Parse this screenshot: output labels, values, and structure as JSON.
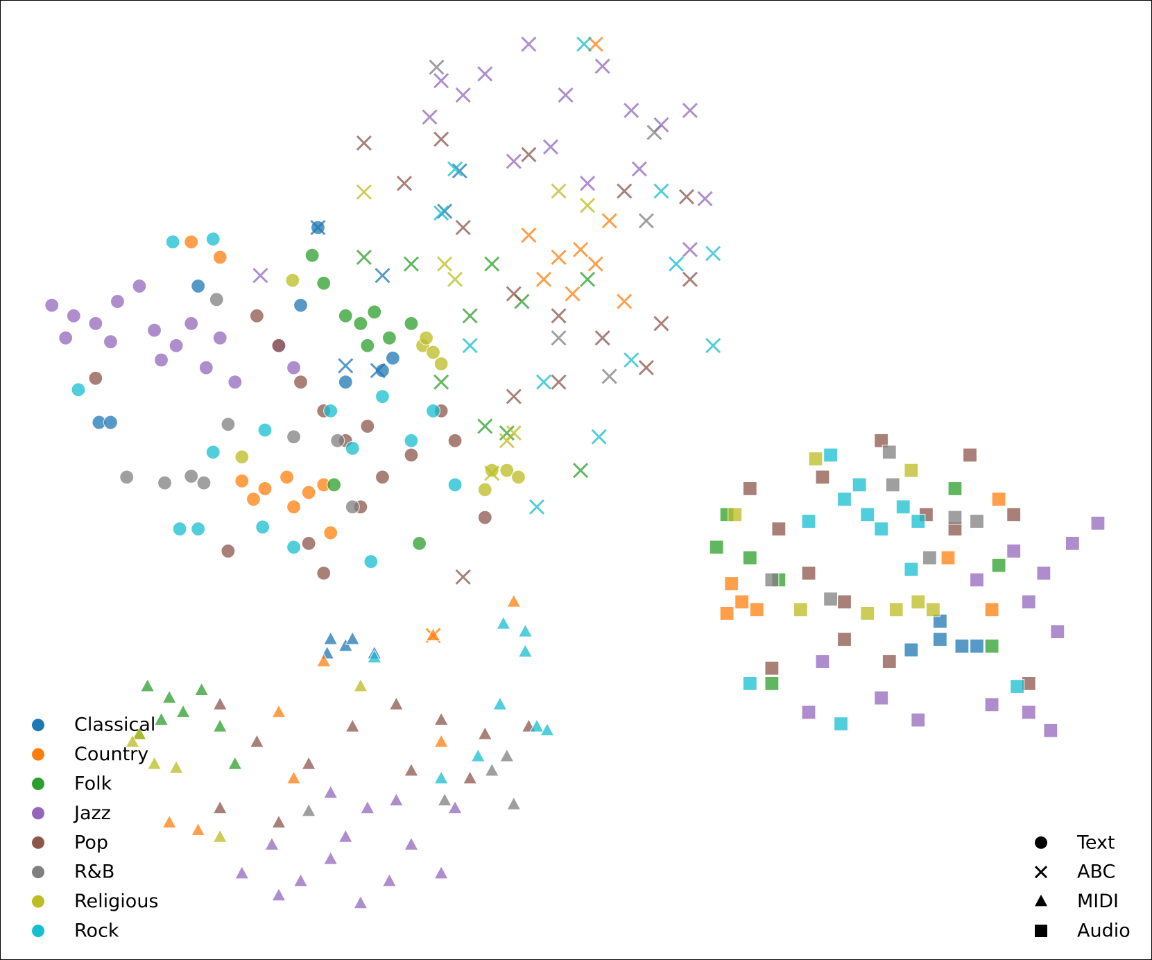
{
  "chart_data": {
    "type": "scatter",
    "xlim": [
      0,
      100
    ],
    "ylim": [
      0,
      100
    ],
    "legend": "lower left",
    "marker_legend": "lower right",
    "genres": [
      {
        "name": "Classical",
        "color": "#1f77b4"
      },
      {
        "name": "Country",
        "color": "#ff7f0e"
      },
      {
        "name": "Folk",
        "color": "#2ca02c"
      },
      {
        "name": "Jazz",
        "color": "#9467bd"
      },
      {
        "name": "Pop",
        "color": "#8c564b"
      },
      {
        "name": "R&B",
        "color": "#7f7f7f"
      },
      {
        "name": "Religious",
        "color": "#bcbd22"
      },
      {
        "name": "Rock",
        "color": "#17becf"
      }
    ],
    "modalities": [
      {
        "name": "Text",
        "marker": "circle"
      },
      {
        "name": "ABC",
        "marker": "x"
      },
      {
        "name": "MIDI",
        "marker": "triangle"
      },
      {
        "name": "Audio",
        "marker": "square"
      }
    ],
    "series": [
      {
        "genre": 0,
        "modality": 0,
        "x": [
          8.6,
          9.6,
          27.6,
          33.2,
          34.1,
          26.1,
          30,
          17.2
        ],
        "y": [
          56,
          56,
          76.3,
          61.4,
          62.7,
          68.2,
          60.2,
          70.2
        ]
      },
      {
        "genre": 1,
        "modality": 0,
        "x": [
          21,
          23,
          24.9,
          26.8,
          22,
          25.5,
          28.1,
          16.6,
          28.7,
          19.1
        ],
        "y": [
          49.9,
          49.1,
          50.3,
          48.7,
          48,
          47.2,
          49.5,
          74.8,
          44.5,
          73.2
        ]
      },
      {
        "genre": 2,
        "modality": 0,
        "x": [
          30,
          31.3,
          32.5,
          33.8,
          35.7,
          31.9,
          27.1,
          28.1,
          36.4,
          29
        ],
        "y": [
          67.1,
          66.3,
          67.5,
          64.8,
          66.3,
          64,
          73.4,
          70.5,
          43.4,
          49.5
        ]
      },
      {
        "genre": 3,
        "modality": 0,
        "x": [
          4.5,
          6.4,
          8.3,
          10.2,
          12.1,
          13.4,
          15.3,
          16.6,
          17.9,
          19.1,
          20.4,
          14,
          24.2,
          25.5,
          5.7,
          9.6
        ],
        "y": [
          68.2,
          67.1,
          66.3,
          68.6,
          70.2,
          65.6,
          64,
          66.3,
          61.7,
          64.8,
          60.2,
          62.5,
          64,
          61.7,
          64.8,
          64.4
        ]
      },
      {
        "genre": 4,
        "modality": 0,
        "x": [
          22.3,
          24.2,
          26.1,
          28.1,
          30,
          31.9,
          33.2,
          35.7,
          38.3,
          39.5,
          31.3,
          26.8,
          19.8,
          28.1,
          42.1,
          8.3
        ],
        "y": [
          67.1,
          64,
          60.2,
          57.2,
          54.1,
          55.6,
          50.3,
          52.6,
          57.2,
          54.1,
          47.2,
          43.4,
          42.6,
          40.3,
          46.1,
          60.6
        ]
      },
      {
        "genre": 5,
        "modality": 0,
        "x": [
          11,
          14.3,
          16.6,
          17.7,
          19.8,
          25.5,
          30.6,
          18.8,
          29.3
        ],
        "y": [
          50.3,
          49.7,
          50.4,
          49.7,
          55.8,
          54.5,
          47.2,
          68.8,
          54.1
        ]
      },
      {
        "genre": 6,
        "modality": 0,
        "x": [
          36.7,
          37.6,
          38.3,
          37,
          42.7,
          44,
          45,
          42.1,
          21,
          25.4
        ],
        "y": [
          64,
          63.3,
          62.1,
          64.8,
          51,
          51,
          50.3,
          49,
          52.4,
          70.8
        ]
      },
      {
        "genre": 7,
        "modality": 0,
        "x": [
          15,
          18.5,
          6.8,
          23,
          18.5,
          15.6,
          17.2,
          28.7,
          30.6,
          33.2,
          35.7,
          37.6,
          39.5,
          22.8,
          25.5,
          32.2
        ],
        "y": [
          74.8,
          75.1,
          59.4,
          55.2,
          52.9,
          44.9,
          44.9,
          57.2,
          53.3,
          58.7,
          54.1,
          57.2,
          49.5,
          45.1,
          43,
          41.5
        ]
      },
      {
        "genre": 0,
        "modality": 1,
        "x": [
          27.6,
          33.2,
          39.9,
          38.6,
          30,
          32.8
        ],
        "y": [
          76.3,
          71.3,
          82.2,
          78,
          61.9,
          61.4
        ]
      },
      {
        "genre": 1,
        "modality": 1,
        "x": [
          45.9,
          48.5,
          50.4,
          51.7,
          49.7,
          47.2,
          52.9,
          51.7,
          37.6,
          54.2
        ],
        "y": [
          75.5,
          73.2,
          74,
          72.5,
          69.4,
          70.9,
          77,
          95.4,
          33.8,
          68.6
        ]
      },
      {
        "genre": 2,
        "modality": 1,
        "x": [
          31.6,
          35.7,
          42.7,
          45.3,
          42.1,
          44,
          50.4,
          51,
          38.3,
          40.8
        ],
        "y": [
          73.2,
          72.5,
          72.5,
          68.6,
          55.6,
          54.9,
          51,
          70.9,
          60.2,
          67.1
        ]
      },
      {
        "genre": 3,
        "modality": 1,
        "x": [
          38.3,
          40.2,
          42.1,
          45.9,
          49.1,
          52.3,
          54.8,
          57.4,
          59.9,
          47.8,
          51,
          55.5,
          44.6,
          61.2,
          37.3,
          59.9,
          22.6
        ],
        "y": [
          91.6,
          90.1,
          92.3,
          95.4,
          90.1,
          93.1,
          88.5,
          87,
          88.5,
          84.7,
          80.9,
          82.4,
          83.2,
          79.3,
          87.8,
          74,
          71.3
        ]
      },
      {
        "genre": 4,
        "modality": 1,
        "x": [
          31.6,
          38.3,
          35.1,
          40.2,
          44.6,
          48.5,
          52.3,
          56.1,
          48.5,
          44.6,
          59.9,
          57.4,
          54.2,
          59.6,
          40.2,
          45.9
        ],
        "y": [
          85.1,
          85.5,
          80.9,
          76.3,
          69.4,
          67.1,
          64.8,
          61.7,
          60.2,
          58.7,
          70.9,
          66.3,
          80.1,
          79.5,
          39.9,
          83.9
        ]
      },
      {
        "genre": 5,
        "modality": 1,
        "x": [
          37.9,
          52.9,
          56.1,
          48.5,
          56.8
        ],
        "y": [
          93,
          60.8,
          77,
          64.8,
          86.2
        ]
      },
      {
        "genre": 6,
        "modality": 1,
        "x": [
          31.6,
          38.6,
          39.5,
          44,
          44.6,
          42.7,
          48.5,
          51
        ],
        "y": [
          80,
          72.5,
          70.9,
          54.1,
          54.9,
          50.7,
          80.1,
          78.6
        ]
      },
      {
        "genre": 7,
        "modality": 1,
        "x": [
          38.3,
          39.5,
          40.8,
          47.2,
          52,
          54.8,
          58.7,
          61.9,
          61.9,
          57.4,
          46.6,
          50.7
        ],
        "y": [
          77.8,
          82.4,
          64,
          60.2,
          54.5,
          62.5,
          72.5,
          73.6,
          64,
          80.1,
          47.2,
          95.4
        ]
      },
      {
        "genre": 0,
        "modality": 2,
        "x": [
          28.7,
          30,
          32.5,
          28.4,
          30.6
        ],
        "y": [
          33.4,
          32.7,
          31.9,
          31.9,
          33.4
        ]
      },
      {
        "genre": 1,
        "modality": 2,
        "x": [
          44.6,
          37.6,
          17.2,
          14.7,
          24.2,
          28.1,
          38.3,
          25.5
        ],
        "y": [
          37.3,
          33.8,
          13.5,
          14.3,
          25.8,
          31.1,
          22.7,
          18.9
        ]
      },
      {
        "genre": 2,
        "modality": 2,
        "x": [
          12.8,
          14.7,
          15.9,
          17.5,
          14,
          19.1,
          12.1,
          20.4
        ],
        "y": [
          28.5,
          27.3,
          25.8,
          28.1,
          25,
          24.3,
          23.5,
          20.4
        ]
      },
      {
        "genre": 3,
        "modality": 2,
        "x": [
          21,
          23.6,
          26.1,
          28.7,
          31.3,
          33.8,
          35.7,
          38.3,
          31.9,
          28.7,
          39.5,
          24.2,
          34.4,
          30
        ],
        "y": [
          9,
          12,
          8.2,
          10.5,
          5.9,
          8.2,
          12,
          9,
          15.8,
          17.4,
          15.8,
          6.7,
          16.6,
          12.8
        ]
      },
      {
        "genre": 4,
        "modality": 2,
        "x": [
          19.1,
          22.3,
          26.8,
          30.6,
          34.4,
          38.3,
          42.1,
          45.9,
          24.2,
          35.7,
          40.8,
          19.1
        ],
        "y": [
          26.6,
          22.7,
          20.4,
          24.3,
          26.6,
          25,
          23.5,
          24.3,
          14.3,
          19.7,
          18.9,
          15.8
        ]
      },
      {
        "genre": 5,
        "modality": 2,
        "x": [
          42.7,
          44.6,
          44,
          38.6,
          26.8
        ],
        "y": [
          19.7,
          16.2,
          21.2,
          16.6,
          15.5
        ]
      },
      {
        "genre": 6,
        "modality": 2,
        "x": [
          12.1,
          13.4,
          15.3,
          19.1,
          11.5,
          31.3
        ],
        "y": [
          23.5,
          20.4,
          20,
          12.8,
          22.7,
          28.5
        ]
      },
      {
        "genre": 7,
        "modality": 2,
        "x": [
          43.7,
          45.6,
          45.6,
          43.4,
          46.6,
          47.5,
          41.5,
          38.3,
          32.5
        ],
        "y": [
          35,
          34.2,
          32.1,
          26.6,
          24.3,
          23.9,
          21.2,
          18.9,
          31.5
        ]
      },
      {
        "genre": 0,
        "modality": 3,
        "x": [
          81.6,
          83.5,
          84.8,
          81.6,
          79.1
        ],
        "y": [
          35.3,
          32.7,
          32.7,
          33.4,
          32.3
        ]
      },
      {
        "genre": 1,
        "modality": 3,
        "x": [
          63.5,
          64.4,
          65.7,
          63.1,
          86.1,
          82.3,
          86.7
        ],
        "y": [
          39.2,
          37.3,
          36.5,
          36.1,
          36.5,
          41.9,
          48
        ]
      },
      {
        "genre": 2,
        "modality": 3,
        "x": [
          62.2,
          63.1,
          65.1,
          67.6,
          86.1,
          86.7,
          82.9,
          67
        ],
        "y": [
          43,
          46.4,
          41.9,
          39.6,
          32.7,
          41.1,
          49.1,
          28.8
        ]
      },
      {
        "genre": 3,
        "modality": 3,
        "x": [
          84.8,
          88,
          90.6,
          93.1,
          95.3,
          91.8,
          89.3,
          71.4,
          76.5,
          79.7,
          86.1,
          89.3,
          91.2,
          70.2
        ],
        "y": [
          39.6,
          42.6,
          40.3,
          43.4,
          45.5,
          34.2,
          37.3,
          31.1,
          27.3,
          25,
          26.6,
          25.8,
          23.9,
          25.8
        ]
      },
      {
        "genre": 4,
        "modality": 3,
        "x": [
          65.1,
          67.6,
          70.2,
          73.3,
          76.5,
          80.4,
          82.9,
          88,
          67,
          73.3,
          77.2,
          89.3,
          71.4,
          84.2
        ],
        "y": [
          49.1,
          44.9,
          40.3,
          37.3,
          54.1,
          46.4,
          44.9,
          46.4,
          30.4,
          33.4,
          31.1,
          28.8,
          50.3,
          52.6
        ]
      },
      {
        "genre": 5,
        "modality": 3,
        "x": [
          77.5,
          80.7,
          82.9,
          84.8,
          72.1,
          67,
          77.2
        ],
        "y": [
          49.5,
          41.9,
          46.1,
          45.7,
          37.6,
          39.6,
          52.9
        ]
      },
      {
        "genre": 6,
        "modality": 3,
        "x": [
          70.8,
          69.5,
          75.3,
          77.8,
          79.7,
          81,
          63.8,
          79.1
        ],
        "y": [
          52.2,
          36.5,
          36.1,
          36.5,
          37.3,
          36.5,
          46.4,
          51
        ]
      },
      {
        "genre": 7,
        "modality": 3,
        "x": [
          72.1,
          73.3,
          75.3,
          76.5,
          78.4,
          70.2,
          74.6,
          79.7,
          73,
          88.3,
          65.1,
          79.1
        ],
        "y": [
          52.6,
          48,
          46.4,
          44.9,
          47.2,
          45.7,
          49.5,
          45.7,
          24.6,
          28.5,
          28.8,
          40.7
        ]
      }
    ]
  }
}
